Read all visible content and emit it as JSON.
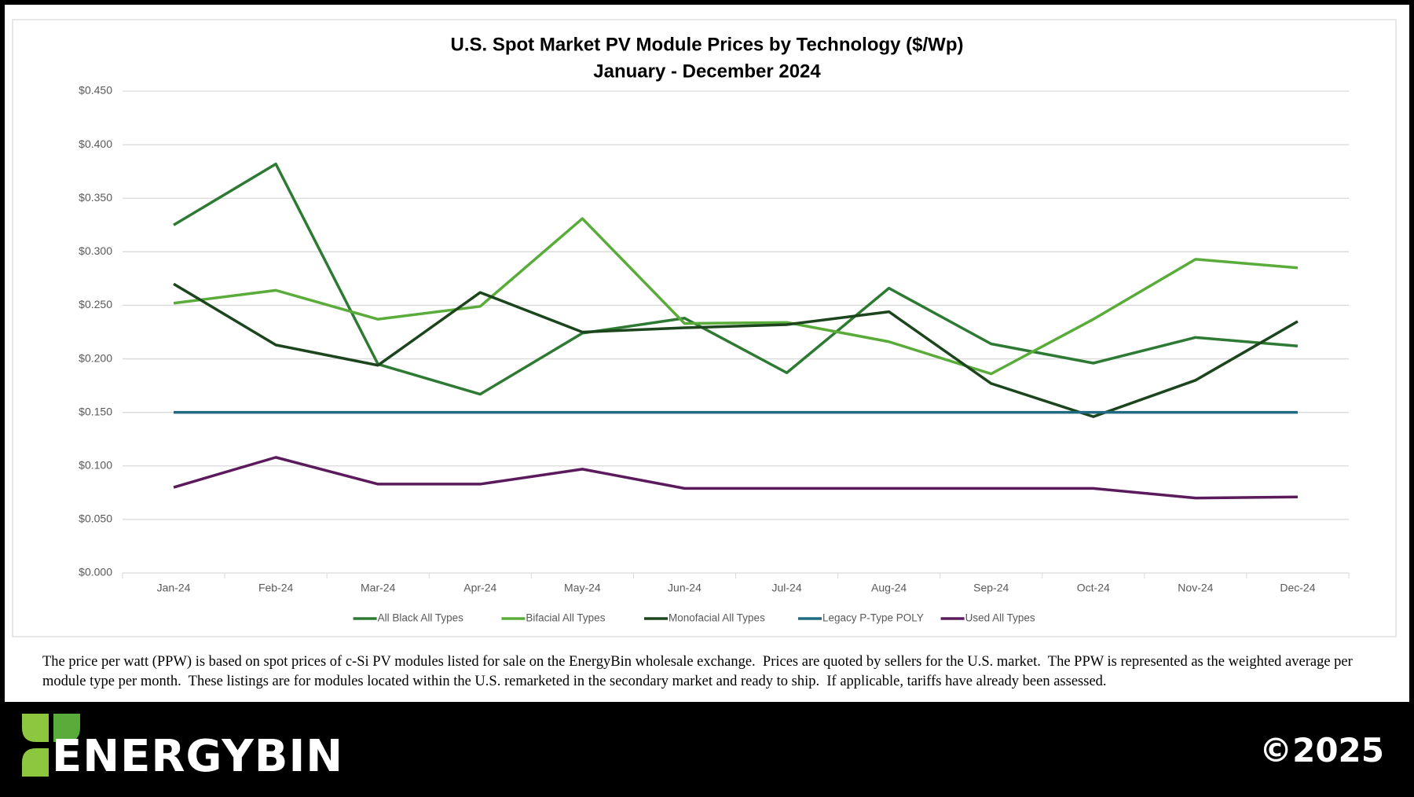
{
  "chart_data": {
    "type": "line",
    "title": "U.S. Spot Market PV Module Prices by Technology ($/Wp)",
    "subtitle": "January - December 2024",
    "categories": [
      "Jan-24",
      "Feb-24",
      "Mar-24",
      "Apr-24",
      "May-24",
      "Jun-24",
      "Jul-24",
      "Aug-24",
      "Sep-24",
      "Oct-24",
      "Nov-24",
      "Dec-24"
    ],
    "series": [
      {
        "name": "All Black All Types",
        "color": "#2e7a34",
        "values": [
          0.325,
          0.382,
          0.195,
          0.167,
          0.224,
          0.238,
          0.187,
          0.266,
          0.214,
          0.196,
          0.22,
          0.212
        ]
      },
      {
        "name": "Bifacial All Types",
        "color": "#5aac3a",
        "values": [
          0.252,
          0.264,
          0.237,
          0.249,
          0.331,
          0.233,
          0.234,
          0.216,
          0.186,
          0.237,
          0.293,
          0.285
        ]
      },
      {
        "name": "Monofacial All Types",
        "color": "#1c451d",
        "values": [
          0.27,
          0.213,
          0.194,
          0.262,
          0.225,
          0.229,
          0.232,
          0.244,
          0.177,
          0.146,
          0.18,
          0.235
        ]
      },
      {
        "name": "Legacy P-Type POLY",
        "color": "#1f6a80",
        "values": [
          0.15,
          0.15,
          0.15,
          0.15,
          0.15,
          0.15,
          0.15,
          0.15,
          0.15,
          0.15,
          0.15,
          0.15
        ]
      },
      {
        "name": "Used All Types",
        "color": "#5b1a5b",
        "values": [
          0.08,
          0.108,
          0.083,
          0.083,
          0.097,
          0.079,
          0.079,
          0.079,
          0.079,
          0.079,
          0.07,
          0.071
        ]
      }
    ],
    "ylim": [
      0,
      0.45
    ],
    "yticks": [
      {
        "value": 0,
        "label": "$0.000"
      },
      {
        "value": 0.05,
        "label": "$0.050"
      },
      {
        "value": 0.1,
        "label": "$0.100"
      },
      {
        "value": 0.15,
        "label": "$0.150"
      },
      {
        "value": 0.2,
        "label": "$0.200"
      },
      {
        "value": 0.25,
        "label": "$0.250"
      },
      {
        "value": 0.3,
        "label": "$0.300"
      },
      {
        "value": 0.35,
        "label": "$0.350"
      },
      {
        "value": 0.4,
        "label": "$0.400"
      },
      {
        "value": 0.45,
        "label": "$0.450"
      }
    ],
    "grid": true,
    "legend": "bottom"
  },
  "footnote": "The price per watt (PPW) is based on spot prices of c-Si PV modules listed for sale on the EnergyBin wholesale exchange.  Prices are quoted by sellers for the U.S. market.  The PPW is represented as the weighted average per module type per month.  These listings are for modules located within the U.S. remarketed in the secondary market and ready to ship.  If applicable, tariffs have already been assessed.",
  "logo": "ENERGYBIN",
  "copyright": "©2025"
}
